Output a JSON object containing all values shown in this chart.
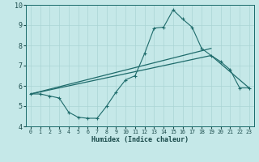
{
  "xlabel": "Humidex (Indice chaleur)",
  "xlim": [
    -0.5,
    23.5
  ],
  "ylim": [
    4,
    10
  ],
  "yticks": [
    4,
    5,
    6,
    7,
    8,
    9,
    10
  ],
  "xticks": [
    0,
    1,
    2,
    3,
    4,
    5,
    6,
    7,
    8,
    9,
    10,
    11,
    12,
    13,
    14,
    15,
    16,
    17,
    18,
    19,
    20,
    21,
    22,
    23
  ],
  "background_color": "#c5e8e8",
  "grid_color": "#aad4d4",
  "line_color": "#1e6b6b",
  "curve1_x": [
    0,
    1,
    2,
    3,
    4,
    5,
    6,
    7,
    8,
    9,
    10,
    11,
    12,
    13,
    14,
    15,
    16,
    17,
    18,
    19,
    20,
    21,
    22,
    23
  ],
  "curve1_y": [
    5.6,
    5.6,
    5.5,
    5.4,
    4.7,
    4.45,
    4.4,
    4.4,
    5.0,
    5.7,
    6.3,
    6.5,
    7.6,
    8.85,
    8.9,
    9.75,
    9.3,
    8.9,
    7.85,
    7.5,
    7.2,
    6.8,
    5.9,
    5.9
  ],
  "curve2_x": [
    0,
    19
  ],
  "curve2_y": [
    5.6,
    7.85
  ],
  "curve3_x": [
    0,
    19,
    23
  ],
  "curve3_y": [
    5.6,
    7.5,
    5.9
  ],
  "figsize": [
    3.2,
    2.0
  ],
  "dpi": 100
}
